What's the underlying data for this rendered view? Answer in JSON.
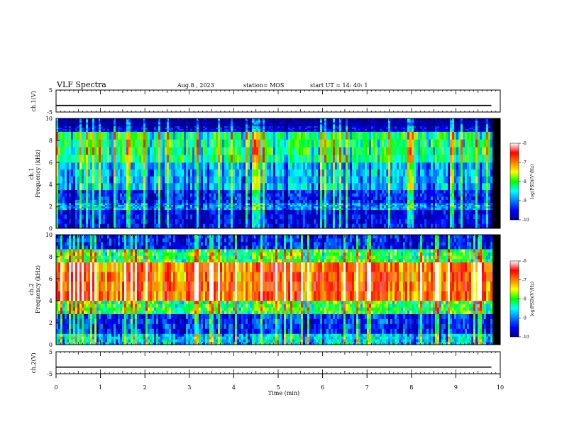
{
  "header": {
    "title": "VLF Spectra",
    "date": "Aug.8 , 2023",
    "station": "station= MOS",
    "start": "start UT = 14: 40: 1"
  },
  "chart_data": [
    {
      "type": "line",
      "name": "ch1-amplitude",
      "ylabel": "ch.1(V)",
      "ylim": [
        -5,
        5
      ],
      "yticks": [
        "5",
        "-5"
      ],
      "x": [
        0,
        9.8
      ],
      "y": [
        -2,
        -2
      ]
    },
    {
      "type": "heatmap",
      "name": "ch1-spectrogram",
      "ylabel": "ch.1\nFrequency (kHz)",
      "ylim": [
        0,
        10
      ],
      "yticks": [
        "0",
        "2",
        "4",
        "6",
        "8",
        "10"
      ],
      "xlim": [
        0,
        9.8
      ],
      "band_kHz": [
        {
          "from": 0.0,
          "to": 1.7,
          "level": -9.5
        },
        {
          "from": 1.7,
          "to": 2.3,
          "level": -8.9
        },
        {
          "from": 2.3,
          "to": 3.5,
          "level": -9.3
        },
        {
          "from": 3.5,
          "to": 6.0,
          "level": -8.7
        },
        {
          "from": 6.0,
          "to": 8.8,
          "level": -8.1
        },
        {
          "from": 8.8,
          "to": 9.3,
          "level": -9.6
        },
        {
          "from": 9.3,
          "to": 10.0,
          "level": -10
        }
      ],
      "colorbar": {
        "label": "log(PSD)(V²/Hz)",
        "ticks": [
          "-6",
          "-7",
          "-8",
          "-9",
          "-10"
        ],
        "range": [
          -10,
          -6
        ]
      }
    },
    {
      "type": "heatmap",
      "name": "ch2-spectrogram",
      "ylabel": "ch.2\nFrequency (kHz)",
      "ylim": [
        0,
        10
      ],
      "yticks": [
        "0",
        "2",
        "4",
        "6",
        "8",
        "10"
      ],
      "xlim": [
        0,
        9.8
      ],
      "band_kHz": [
        {
          "from": 0.0,
          "to": 1.0,
          "level": -8.5
        },
        {
          "from": 1.0,
          "to": 2.8,
          "level": -9.2
        },
        {
          "from": 2.8,
          "to": 4.0,
          "level": -7.9
        },
        {
          "from": 4.0,
          "to": 7.5,
          "level": -6.7
        },
        {
          "from": 7.5,
          "to": 8.7,
          "level": -7.9
        },
        {
          "from": 8.7,
          "to": 10.0,
          "level": -9.3
        }
      ],
      "colorbar": {
        "label": "log(PSD)(V²/Hz)",
        "ticks": [
          "-6",
          "-7",
          "-8",
          "-9",
          "-10"
        ],
        "range": [
          -10,
          -6
        ]
      }
    },
    {
      "type": "line",
      "name": "ch2-amplitude",
      "ylabel": "ch.2(V)",
      "ylim": [
        -5,
        5
      ],
      "yticks": [
        "5",
        "-5"
      ],
      "x": [
        0,
        9.8
      ],
      "y": [
        -2,
        -2
      ]
    }
  ],
  "x_axis": {
    "label": "Time (min)",
    "ticks": [
      "0",
      "1",
      "2",
      "3",
      "4",
      "5",
      "6",
      "7",
      "8",
      "9",
      "10"
    ],
    "range": [
      0,
      10
    ]
  }
}
